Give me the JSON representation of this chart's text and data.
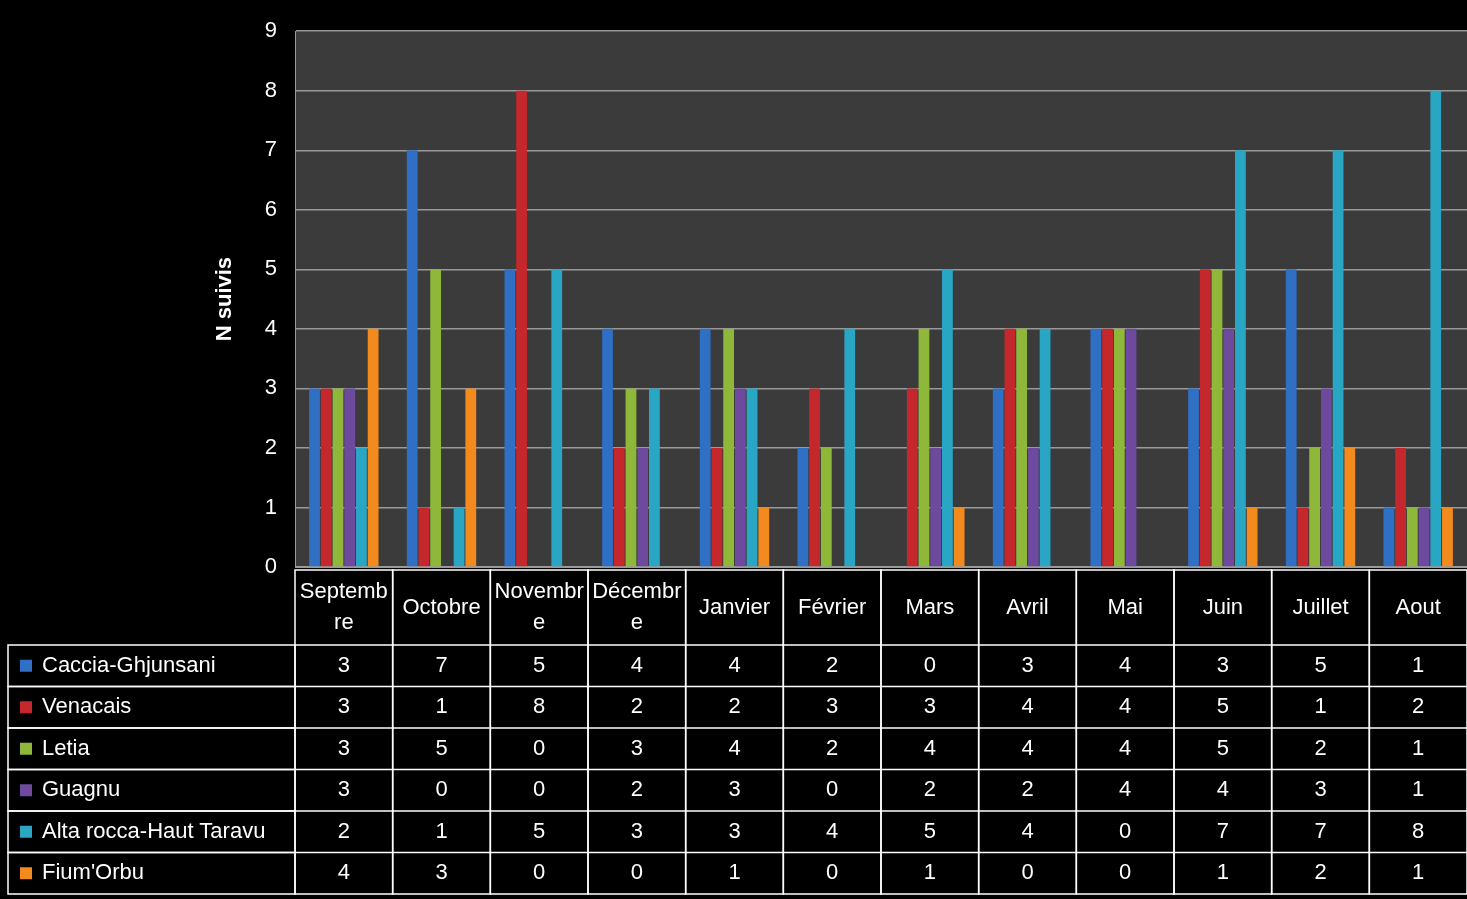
{
  "chart_data": {
    "type": "bar",
    "ylabel": "N suivis",
    "categories": [
      "Septembre",
      "Octobre",
      "Novembre",
      "Décembre",
      "Janvier",
      "Février",
      "Mars",
      "Avril",
      "Mai",
      "Juin",
      "Juillet",
      "Aout"
    ],
    "series": [
      {
        "name": "Caccia-Ghjunsani",
        "color": "#2f6fc4",
        "values": [
          3,
          7,
          5,
          4,
          4,
          2,
          0,
          3,
          4,
          3,
          5,
          1
        ]
      },
      {
        "name": "Venacais",
        "color": "#c4282c",
        "values": [
          3,
          1,
          8,
          2,
          2,
          3,
          3,
          4,
          4,
          5,
          1,
          2
        ]
      },
      {
        "name": "Letia",
        "color": "#8fb83a",
        "values": [
          3,
          5,
          0,
          3,
          4,
          2,
          4,
          4,
          4,
          5,
          2,
          1
        ]
      },
      {
        "name": "Guagnu",
        "color": "#6e4a9e",
        "values": [
          3,
          0,
          0,
          2,
          3,
          0,
          2,
          2,
          4,
          4,
          3,
          1
        ]
      },
      {
        "name": "Alta rocca-Haut Taravu",
        "color": "#29a6c4",
        "values": [
          2,
          1,
          5,
          3,
          3,
          4,
          5,
          4,
          0,
          7,
          7,
          8
        ]
      },
      {
        "name": "Fium'Orbu",
        "color": "#f28a1e",
        "values": [
          4,
          3,
          0,
          0,
          1,
          0,
          1,
          0,
          0,
          1,
          2,
          1
        ]
      }
    ],
    "ylim": [
      0,
      9
    ],
    "yticks": [
      0,
      1,
      2,
      3,
      4,
      5,
      6,
      7,
      8,
      9
    ],
    "grid": "y",
    "data_labels": true,
    "legend": "bottom left"
  }
}
